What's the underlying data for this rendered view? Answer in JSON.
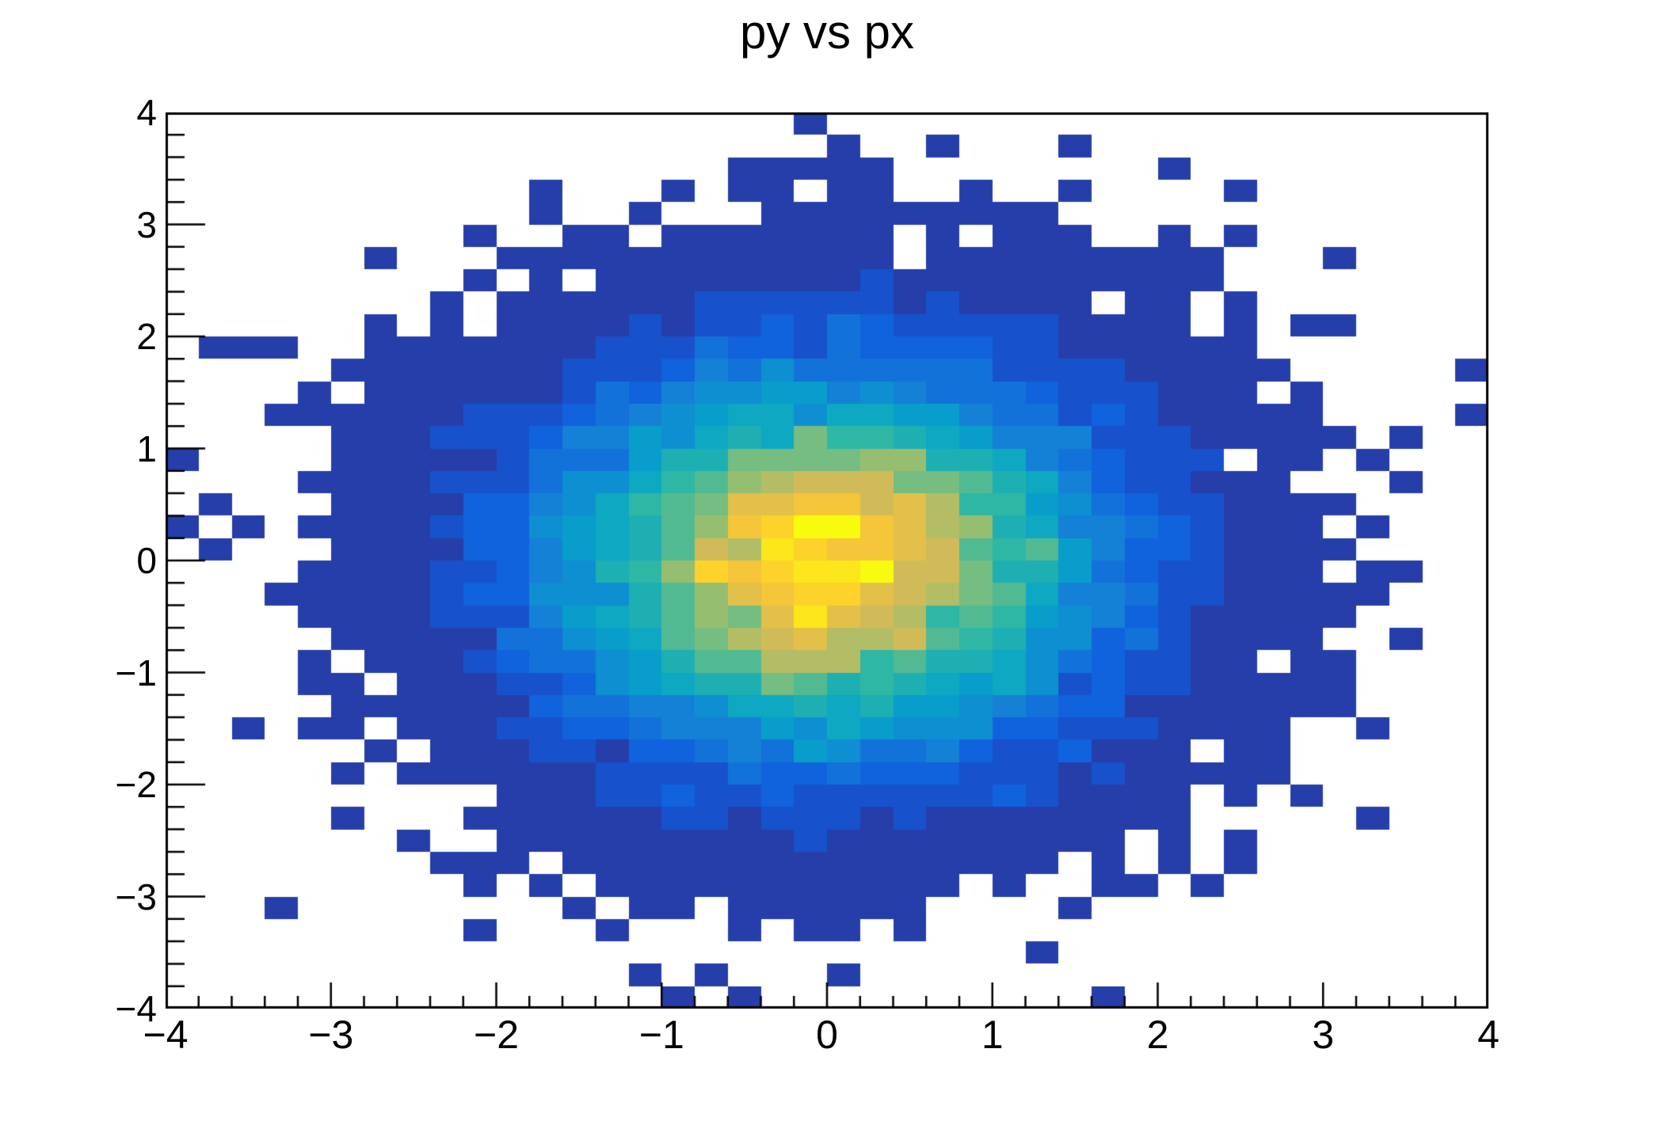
{
  "page": {
    "background": "#ffffff"
  },
  "chart_data": {
    "type": "heatmap",
    "title": "py vs px",
    "xlabel": "",
    "ylabel": "",
    "x_range": [
      -4,
      4
    ],
    "y_range": [
      -4,
      4
    ],
    "bins": {
      "nx": 40,
      "ny": 40,
      "x_bin_width": 0.2,
      "y_bin_width": 0.2
    },
    "x_ticks": [
      "−4",
      "−3",
      "−2",
      "−1",
      "0",
      "1",
      "2",
      "3",
      "4"
    ],
    "y_ticks": [
      "4",
      "3",
      "2",
      "1",
      "0",
      "−1",
      "−2",
      "−3",
      "−4"
    ],
    "minor_divisions_per_unit": 5,
    "grid": false,
    "legend": "none",
    "distribution": {
      "model": "gaussian2d",
      "mean": [
        0,
        0
      ],
      "sigma": [
        1,
        1
      ],
      "peak_counts": 158,
      "noise": "poisson",
      "render_seed": 7
    },
    "palette": {
      "name": "root-bird",
      "stops": [
        "#352a87",
        "#0f5cdd",
        "#1481d6",
        "#06a4ca",
        "#2eb7a4",
        "#87bf77",
        "#d1bb59",
        "#fec832",
        "#f9fb0e"
      ],
      "n_contours": 20,
      "zero_color": "#ffffff"
    },
    "frame_color": "#000000",
    "tick_color": "#000000",
    "label_color": "#000000"
  }
}
